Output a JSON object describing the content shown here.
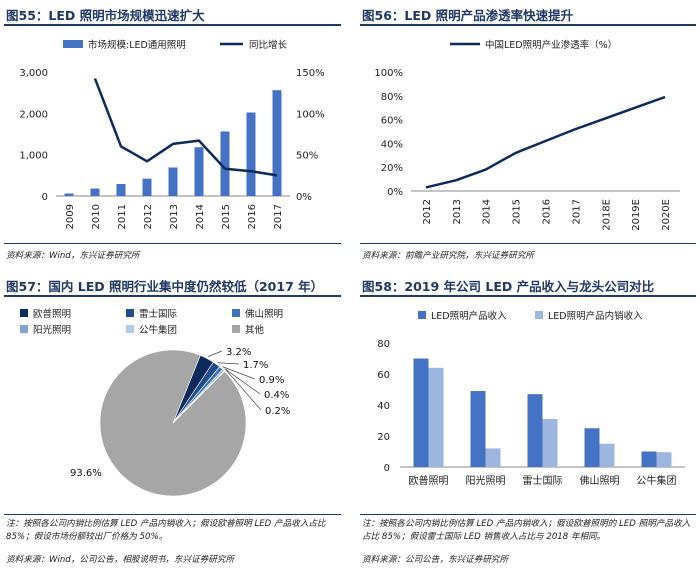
{
  "panel55": {
    "title": "图55：LED 照明市场规模迅速扩大",
    "source": "资料来源：Wind，东兴证券研究所",
    "chart_data": {
      "type": "bar+line",
      "categories": [
        "2009",
        "2010",
        "2011",
        "2012",
        "2013",
        "2014",
        "2015",
        "2016",
        "2017"
      ],
      "series": [
        {
          "name": "市场规模:LED通用照明",
          "type": "bar",
          "axis": "left",
          "values": [
            60,
            180,
            290,
            420,
            690,
            1180,
            1560,
            2020,
            2560
          ]
        },
        {
          "name": "同比增长",
          "type": "line",
          "axis": "right",
          "values": [
            null,
            142,
            60,
            42,
            63,
            67,
            33,
            30,
            25
          ]
        }
      ],
      "yleft": {
        "min": 0,
        "max": 3000,
        "ticks": [
          "0",
          "1,000",
          "2,000",
          "3,000"
        ],
        "tick_values": [
          0,
          1000,
          2000,
          3000
        ]
      },
      "yright": {
        "min": 0,
        "max": 150,
        "ticks": [
          "0%",
          "50%",
          "100%",
          "150%"
        ],
        "tick_values": [
          0,
          50,
          100,
          150
        ]
      },
      "colors": {
        "bar": "#4472c4",
        "line": "#0d2a5c"
      }
    }
  },
  "panel56": {
    "title": "图56：LED 照明产品渗透率快速提升",
    "source": "资料来源：前瞻产业研究院，东兴证券研究所",
    "chart_data": {
      "type": "line",
      "categories": [
        "2012",
        "2013",
        "2014",
        "2015",
        "2016",
        "2017",
        "2018E",
        "2019E",
        "2020E"
      ],
      "series": [
        {
          "name": "中国LED照明产业渗透率（%）",
          "values": [
            3,
            9,
            18,
            32,
            42,
            52,
            61,
            70,
            79
          ]
        }
      ],
      "y": {
        "min": 0,
        "max": 100,
        "ticks": [
          "0%",
          "20%",
          "40%",
          "60%",
          "80%",
          "100%"
        ],
        "tick_values": [
          0,
          20,
          40,
          60,
          80,
          100
        ]
      },
      "colors": {
        "line": "#0d2a5c"
      }
    }
  },
  "panel57": {
    "title": "图57：国内 LED 照明行业集中度仍然较低（2017 年）",
    "note": "注：按照各公司内销比例估算 LED 产品内销收入；假设欧普照明 LED 产品收入占比 85%；假设市场份额较出厂价格为 50%。",
    "source": "资料来源：Wind，公司公告，相股说明书，东兴证券研究所",
    "chart_data": {
      "type": "pie",
      "labels": [
        "欧普照明",
        "雷士国际",
        "佛山照明",
        "阳光照明",
        "公牛集团",
        "其他"
      ],
      "values": [
        3.2,
        1.7,
        0.9,
        0.4,
        0.2,
        93.6
      ],
      "value_labels": [
        "3.2%",
        "1.7%",
        "0.9%",
        "0.4%",
        "0.2%",
        "93.6%"
      ],
      "colors": [
        "#0d2a5c",
        "#1f4e8c",
        "#3f74b8",
        "#7ea4d4",
        "#b4cbe8",
        "#a6a6a6"
      ]
    }
  },
  "panel58": {
    "title": "图58：2019 年公司 LED 产品收入与龙头公司对比",
    "note": "注：按照各公司内销比例估算 LED 产品内销收入；假设欧普照明的 LED 照明产品收入占比 85%；假设雷士国际 LED 销售收入占比与 2018 年相同。",
    "source": "资料来源：公司公告，东兴证券研究所",
    "chart_data": {
      "type": "bar",
      "categories": [
        "欧普照明",
        "阳光照明",
        "雷士国际",
        "佛山照明",
        "公牛集团"
      ],
      "series": [
        {
          "name": "LED照明产品收入",
          "values": [
            70,
            49,
            47,
            25,
            10
          ]
        },
        {
          "name": "LED照明产品内销收入",
          "values": [
            64,
            12,
            31,
            15,
            9.5
          ]
        }
      ],
      "y": {
        "min": 0,
        "max": 80,
        "ticks": [
          "0",
          "20",
          "40",
          "60",
          "80"
        ],
        "tick_values": [
          0,
          20,
          40,
          60,
          80
        ]
      },
      "colors": [
        "#4472c4",
        "#9db6e0"
      ]
    }
  }
}
